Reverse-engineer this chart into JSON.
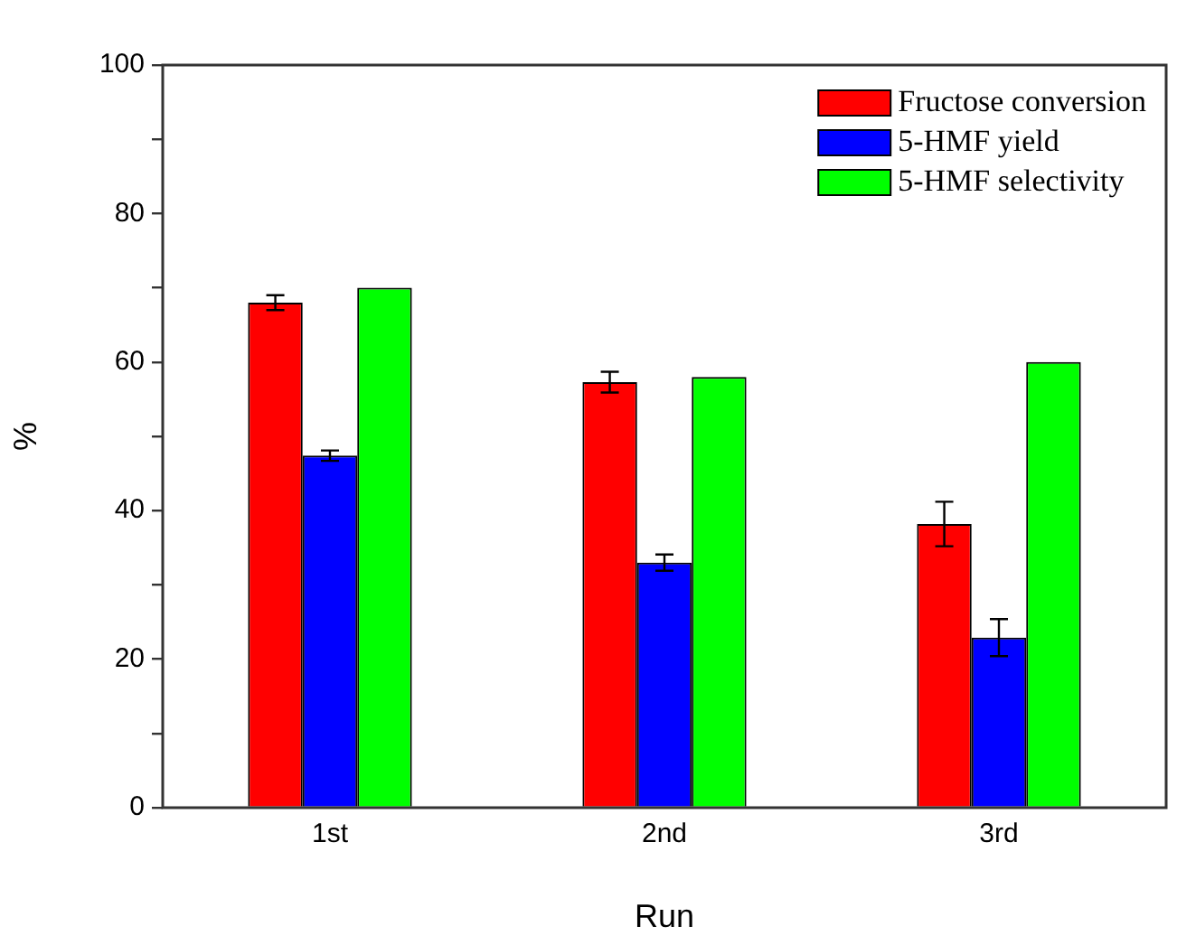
{
  "chart_data": {
    "type": "bar",
    "xlabel": "Run",
    "ylabel": "%",
    "categories": [
      "1st",
      "2nd",
      "3rd"
    ],
    "series": [
      {
        "name": "Fructose conversion",
        "color": "#ff0000",
        "values": [
          68,
          57.3,
          38.2
        ],
        "errors": [
          1,
          1.4,
          3
        ]
      },
      {
        "name": "5-HMF yield",
        "color": "#0000ff",
        "values": [
          47.4,
          33,
          22.9
        ],
        "errors": [
          0.7,
          1.1,
          2.5
        ]
      },
      {
        "name": "5-HMF selectivity",
        "color": "#00ff00",
        "values": [
          70,
          58,
          60
        ]
      }
    ],
    "ylim": [
      0,
      100
    ],
    "yticks": [
      0,
      {
        "value": 10,
        "label": null
      },
      20,
      {
        "value": 30,
        "label": null
      },
      40,
      {
        "value": 50,
        "label": null
      },
      60,
      {
        "value": 70,
        "label": null
      },
      80,
      {
        "value": 90,
        "label": null
      },
      100
    ],
    "grid": false,
    "legend": "top right"
  }
}
